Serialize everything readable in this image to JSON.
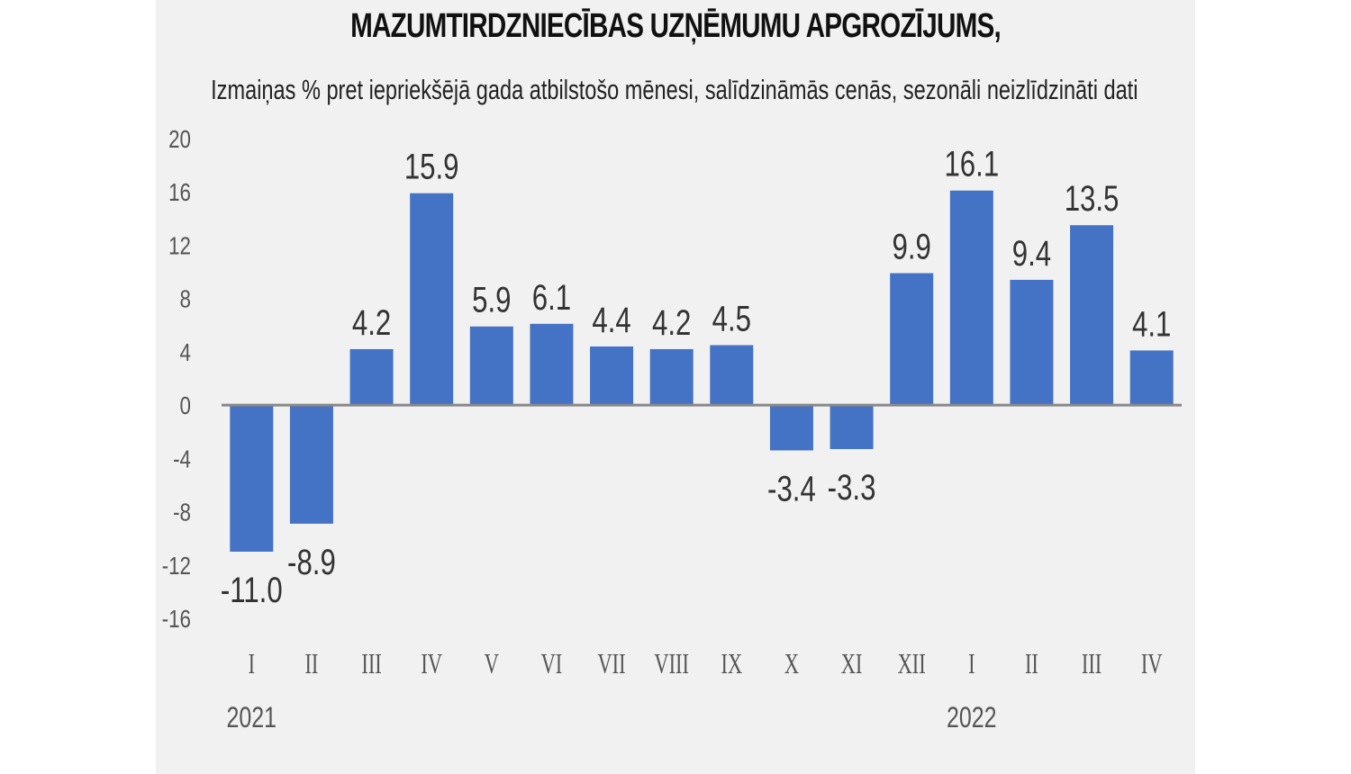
{
  "chart_data": {
    "type": "bar",
    "title": "MAZUMTIRDZNIECĪBAS UZŅĒMUMU APGROZĪJUMS,",
    "subtitle": "Izmaiņas % pret iepriekšējā gada atbilstošo mēnesi, salīdzināmās cenās, sezonāli neizlīdzināti dati",
    "categories": [
      "I",
      "II",
      "III",
      "IV",
      "V",
      "VI",
      "VII",
      "VIII",
      "IX",
      "X",
      "XI",
      "XII",
      "I",
      "II",
      "III",
      "IV"
    ],
    "values": [
      -11.0,
      -8.9,
      4.2,
      15.9,
      5.9,
      6.1,
      4.4,
      4.2,
      4.5,
      -3.4,
      -3.3,
      9.9,
      16.1,
      9.4,
      13.5,
      4.1
    ],
    "value_labels": [
      "-11.0",
      "-8.9",
      "4.2",
      "15.9",
      "5.9",
      "6.1",
      "4.4",
      "4.2",
      "4.5",
      "-3.4",
      "-3.3",
      "9.9",
      "16.1",
      "9.4",
      "13.5",
      "4.1"
    ],
    "year_labels": [
      {
        "label": "2021",
        "category_index": 0
      },
      {
        "label": "2022",
        "category_index": 12
      }
    ],
    "yticks": [
      20,
      16,
      12,
      8,
      4,
      0,
      -4,
      -8,
      -12,
      -16
    ],
    "ylim": [
      -16,
      20
    ],
    "xlabel": "",
    "ylabel": "",
    "bar_color": "#4472c4",
    "axis_color": "#888888",
    "grid": false
  }
}
